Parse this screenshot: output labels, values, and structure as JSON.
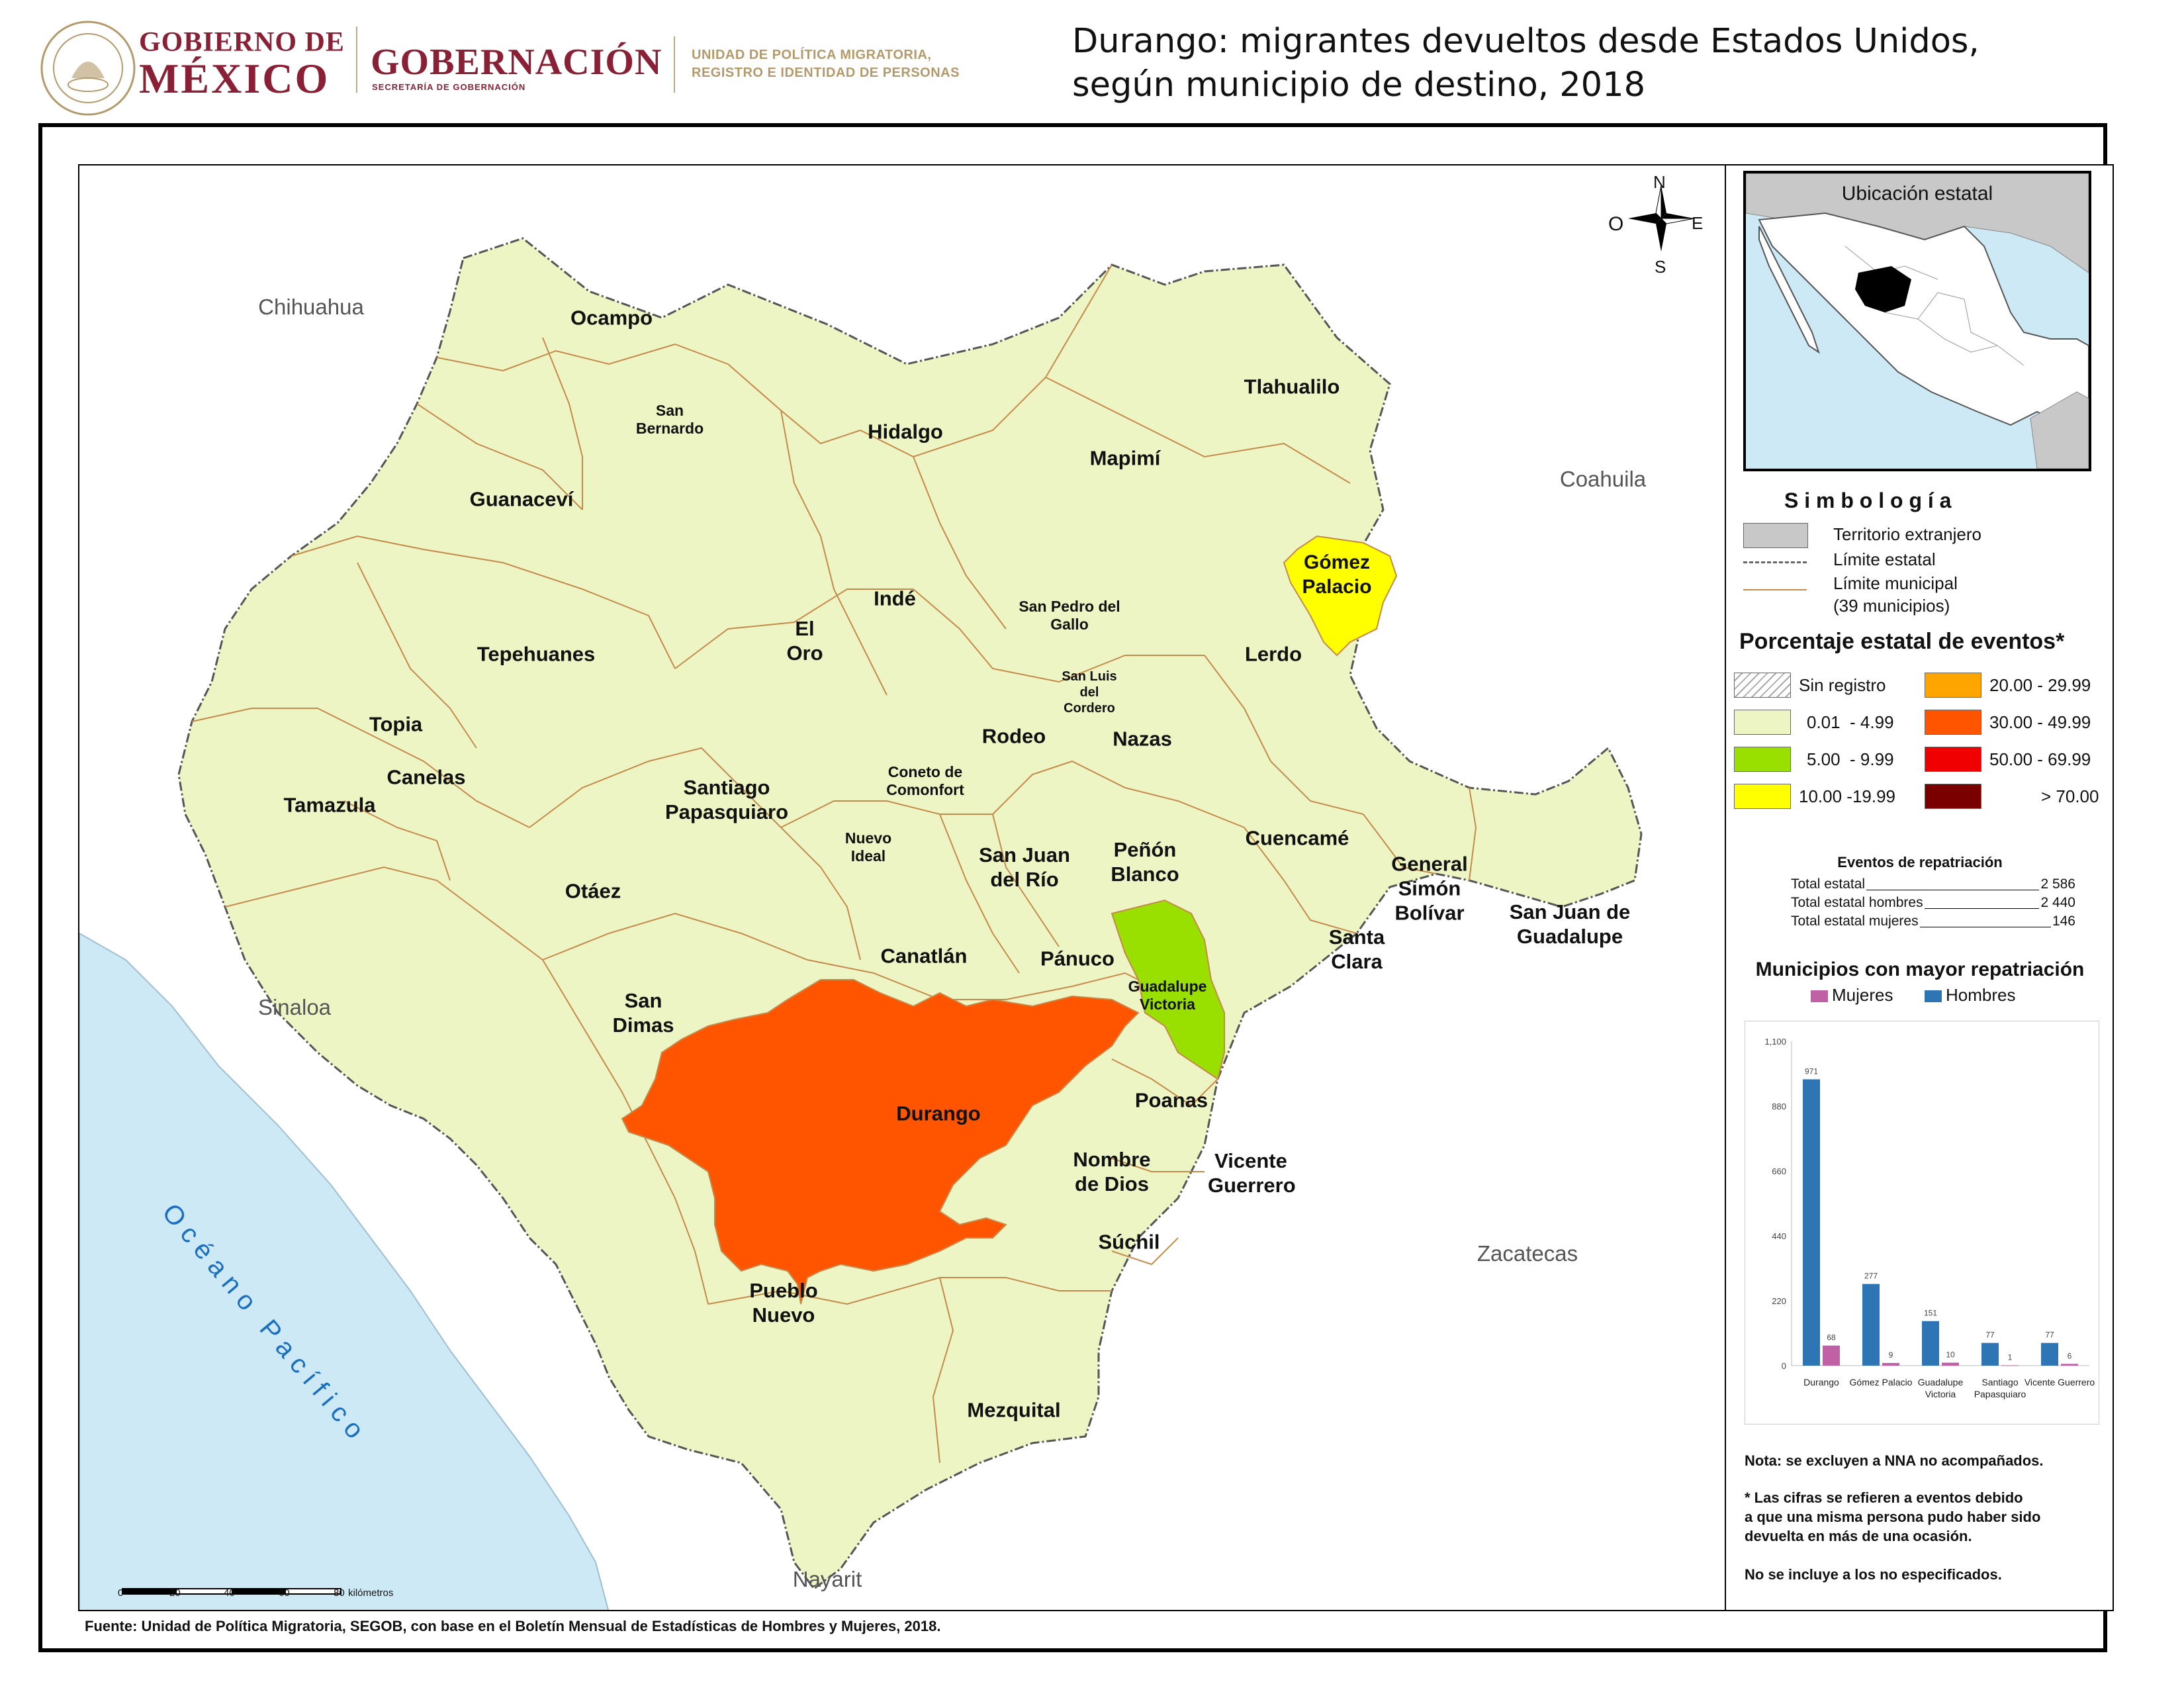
{
  "header": {
    "gob_line1": "GOBIERNO DE",
    "gob_line2": "MÉXICO",
    "gobernacion": "GOBERNACIÓN",
    "gobernacion_sub": "SECRETARÍA DE GOBERNACIÓN",
    "unit_line1": "UNIDAD DE POLÍTICA MIGRATORIA,",
    "unit_line2": "REGISTRO E IDENTIDAD DE PERSONAS",
    "title_line1": "Durango: migrantes devueltos desde Estados Unidos,",
    "title_line2": "según municipio de destino, 2018"
  },
  "map": {
    "compass": {
      "n": "N",
      "s": "S",
      "e": "E",
      "o": "O"
    },
    "neighbors": [
      "Chihuahua",
      "Coahuila",
      "Sinaloa",
      "Zacatecas",
      "Nayarit"
    ],
    "ocean": "O c é a n o   P a c í f i c o",
    "scale": {
      "ticks": [
        "0",
        "20",
        "40",
        "60",
        "80"
      ],
      "unit": "kilómetros"
    },
    "municipalities": [
      {
        "name": "Ocampo",
        "class": "0.01-4.99"
      },
      {
        "name": "San Bernardo",
        "class": "0.01-4.99"
      },
      {
        "name": "Hidalgo",
        "class": "0.01-4.99"
      },
      {
        "name": "Mapimí",
        "class": "0.01-4.99"
      },
      {
        "name": "Tlahualilo",
        "class": "0.01-4.99"
      },
      {
        "name": "Guanaceví",
        "class": "0.01-4.99"
      },
      {
        "name": "Gómez Palacio",
        "class": "10.00-19.99"
      },
      {
        "name": "Indé",
        "class": "0.01-4.99"
      },
      {
        "name": "San Pedro del Gallo",
        "class": "0.01-4.99"
      },
      {
        "name": "El Oro",
        "class": "0.01-4.99"
      },
      {
        "name": "Tepehuanes",
        "class": "0.01-4.99"
      },
      {
        "name": "Lerdo",
        "class": "0.01-4.99"
      },
      {
        "name": "San Luis del Cordero",
        "class": "0.01-4.99"
      },
      {
        "name": "Topia",
        "class": "0.01-4.99"
      },
      {
        "name": "Rodeo",
        "class": "0.01-4.99"
      },
      {
        "name": "Nazas",
        "class": "0.01-4.99"
      },
      {
        "name": "Canelas",
        "class": "0.01-4.99"
      },
      {
        "name": "Coneto de Comonfort",
        "class": "0.01-4.99"
      },
      {
        "name": "Santiago Papasquiaro",
        "class": "0.01-4.99"
      },
      {
        "name": "Tamazula",
        "class": "0.01-4.99"
      },
      {
        "name": "Cuencamé",
        "class": "0.01-4.99"
      },
      {
        "name": "Nuevo Ideal",
        "class": "0.01-4.99"
      },
      {
        "name": "San Juan del Río",
        "class": "0.01-4.99"
      },
      {
        "name": "Peñón Blanco",
        "class": "0.01-4.99"
      },
      {
        "name": "General Simón Bolívar",
        "class": "0.01-4.99"
      },
      {
        "name": "San Juan de Guadalupe",
        "class": "0.01-4.99"
      },
      {
        "name": "Otáez",
        "class": "0.01-4.99"
      },
      {
        "name": "Santa Clara",
        "class": "0.01-4.99"
      },
      {
        "name": "Canatlán",
        "class": "0.01-4.99"
      },
      {
        "name": "Pánuco",
        "class": "0.01-4.99"
      },
      {
        "name": "Guadalupe Victoria",
        "class": "5.00-9.99"
      },
      {
        "name": "San Dimas",
        "class": "0.01-4.99"
      },
      {
        "name": "Durango",
        "class": "30.00-49.99"
      },
      {
        "name": "Poanas",
        "class": "0.01-4.99"
      },
      {
        "name": "Nombre de Dios",
        "class": "0.01-4.99"
      },
      {
        "name": "Vicente Guerrero",
        "class": "0.01-4.99"
      },
      {
        "name": "Súchil",
        "class": "0.01-4.99"
      },
      {
        "name": "Pueblo Nuevo",
        "class": "0.01-4.99"
      },
      {
        "name": "Mezquital",
        "class": "0.01-4.99"
      }
    ]
  },
  "legend": {
    "inset_title": "Ubicación estatal",
    "simbologia_title": "S i m b o l o g í a",
    "symbols": [
      {
        "label": "Territorio extranjero"
      },
      {
        "label": "Límite estatal"
      },
      {
        "label": "Límite municipal"
      },
      {
        "label": "(39 municipios)"
      }
    ],
    "classes_title": "Porcentaje estatal de eventos*",
    "classes": [
      {
        "label": "Sin registro",
        "color": "hatch"
      },
      {
        "label": "20.00 - 29.99",
        "color": "#ffa500"
      },
      {
        "label": "0.01  - 4.99",
        "color": "#eef5c4"
      },
      {
        "label": "30.00 - 49.99",
        "color": "#ff5500"
      },
      {
        "label": "5.00  - 9.99",
        "color": "#99e000"
      },
      {
        "label": "50.00 - 69.99",
        "color": "#f00000"
      },
      {
        "label": "10.00 -19.99",
        "color": "#ffff00"
      },
      {
        "label": "> 70.00",
        "color": "#7a0000"
      }
    ],
    "events": {
      "title": "Eventos de repatriación",
      "rows": [
        {
          "label": "Total estatal",
          "value": "2 586"
        },
        {
          "label": "Total estatal hombres",
          "value": "2 440"
        },
        {
          "label": "Total estatal mujeres",
          "value": "146"
        }
      ]
    },
    "chart_title": "Municipios con mayor repatriación",
    "notes": {
      "nota": "Nota: se excluyen a NNA no acompañados.",
      "asterisk_1": "* Las cifras se refieren a eventos debido",
      "asterisk_2": "a que una misma persona pudo haber sido",
      "asterisk_3": "devuelta en más de una ocasión.",
      "no_esp": "No se incluye a los no especificados."
    }
  },
  "source": "Fuente: Unidad de Política Migratoria, SEGOB, con base en el Boletín Mensual de Estadísticas de Hombres y Mujeres, 2018.",
  "chart_data": {
    "type": "bar",
    "title": "Municipios con mayor repatriación",
    "categories": [
      "Durango",
      "Gómez Palacio",
      "Guadalupe Victoria",
      "Santiago Papasquiaro",
      "Vicente Guerrero"
    ],
    "category_lines": [
      [
        "Durango"
      ],
      [
        "Gómez Palacio"
      ],
      [
        "Guadalupe",
        "Victoria"
      ],
      [
        "Santiago",
        "Papasquiaro"
      ],
      [
        "Vicente Guerrero"
      ]
    ],
    "series": [
      {
        "name": "Hombres",
        "values": [
          971,
          277,
          151,
          77,
          77
        ],
        "color": "#2e75b6"
      },
      {
        "name": "Mujeres",
        "values": [
          68,
          9,
          10,
          1,
          6
        ],
        "color": "#c061a6"
      }
    ],
    "legend_order": [
      "Mujeres",
      "Hombres"
    ],
    "ylim": [
      0,
      1100
    ],
    "yticks": [
      "0",
      "220",
      "440",
      "660",
      "880",
      "1,100"
    ],
    "grid": false,
    "legend_position": "top"
  }
}
